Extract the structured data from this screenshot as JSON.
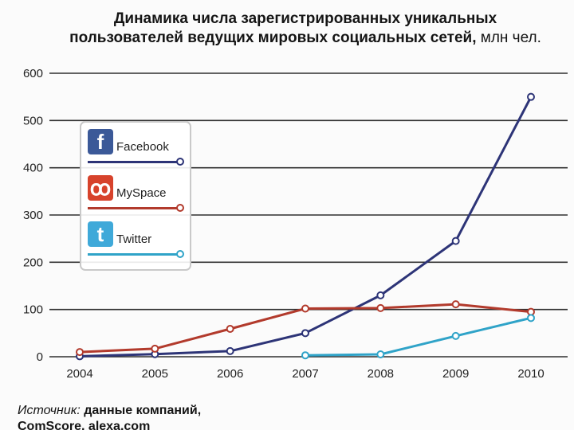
{
  "title_line1": "Динамика числа зарегистрированных уникальных",
  "title_line2": "пользователей ведущих мировых социальных сетей,",
  "title_unit": "млн чел.",
  "source_label": "Источник:",
  "source_text": "данные компаний,",
  "source_text2": "ComScore, alexa.com",
  "colors": {
    "facebook": "#2d3477",
    "myspace": "#b23a2c",
    "twitter": "#2fa3c8",
    "grid": "#303030"
  },
  "legend": {
    "items": [
      {
        "label": "Facebook",
        "icon": "facebook-icon",
        "glyph": "f",
        "icon_color": "#3b5998"
      },
      {
        "label": "MySpace",
        "icon": "myspace-icon",
        "glyph": "ꝏ",
        "icon_color": "#d7432c"
      },
      {
        "label": "Twitter",
        "icon": "twitter-icon",
        "glyph": "t",
        "icon_color": "#3fa9d9"
      }
    ]
  },
  "chart_data": {
    "type": "line",
    "title": "Динамика числа зарегистрированных уникальных пользователей ведущих мировых социальных сетей, млн чел.",
    "x": [
      "2004",
      "2005",
      "2006",
      "2007",
      "2008",
      "2009",
      "2010"
    ],
    "yticks": [
      "0",
      "100",
      "200",
      "300",
      "400",
      "500",
      "600"
    ],
    "ylim": [
      0,
      600
    ],
    "grid": true,
    "legend_position": "top-left",
    "series": [
      {
        "name": "Facebook",
        "values": [
          1,
          5.5,
          12,
          50,
          130,
          245,
          550
        ]
      },
      {
        "name": "MySpace",
        "values": [
          10,
          17,
          59,
          102,
          103,
          111,
          95
        ]
      },
      {
        "name": "Twitter",
        "values": [
          null,
          null,
          null,
          3,
          5,
          44,
          82
        ]
      }
    ]
  }
}
